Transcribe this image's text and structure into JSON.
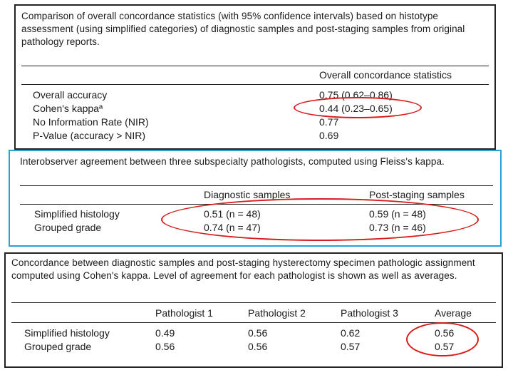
{
  "table1": {
    "caption": "Comparison of overall concordance statistics (with 95% confidence intervals) based on histotype assessment (using simplified categories) of diagnostic samples and post-staging samples from original pathology reports.",
    "header": "Overall concordance statistics",
    "rows": [
      {
        "label": "Overall accuracy",
        "value": "0.75 (0.62–0.86)"
      },
      {
        "label": "Cohen's kappaª",
        "value": "0.44 (0.23–0.65)"
      },
      {
        "label": "No Information Rate (NIR)",
        "value": "0.77"
      },
      {
        "label": "P-Value (accuracy > NIR)",
        "value": "0.69"
      }
    ]
  },
  "table2": {
    "caption": "Interobserver agreement between three subspecialty pathologists, computed using Fleiss's kappa.",
    "headers": [
      "Diagnostic samples",
      "Post-staging samples"
    ],
    "rows": [
      {
        "label": "Simplified histology",
        "values": [
          "0.51 (n = 48)",
          "0.59 (n = 48)"
        ]
      },
      {
        "label": "Grouped grade",
        "values": [
          "0.74 (n = 47)",
          "0.73 (n = 46)"
        ]
      }
    ]
  },
  "table3": {
    "caption": "Concordance between diagnostic samples and post-staging hysterectomy specimen pathologic assignment computed using Cohen's kappa. Level of agreement for each pathologist is shown as well as averages.",
    "headers": [
      "Pathologist 1",
      "Pathologist 2",
      "Pathologist 3",
      "Average"
    ],
    "rows": [
      {
        "label": "Simplified histology",
        "values": [
          "0.49",
          "0.56",
          "0.62",
          "0.56"
        ]
      },
      {
        "label": "Grouped grade",
        "values": [
          "0.56",
          "0.56",
          "0.57",
          "0.57"
        ]
      }
    ]
  },
  "colors": {
    "panel1_border": "#222222",
    "panel2_border": "#29a3d6",
    "panel3_border": "#222222",
    "highlight": "#d81b1b"
  }
}
